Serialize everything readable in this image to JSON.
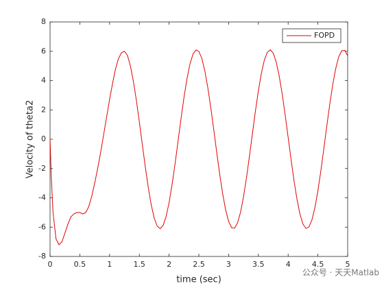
{
  "chart_data": {
    "type": "line",
    "xlabel": "time (sec)",
    "ylabel": "Velocity of theta2",
    "xlim": [
      0,
      5
    ],
    "ylim": [
      -8,
      8
    ],
    "xticks": [
      0,
      0.5,
      1,
      1.5,
      2,
      2.5,
      3,
      3.5,
      4,
      4.5,
      5
    ],
    "yticks": [
      -8,
      -6,
      -4,
      -2,
      0,
      2,
      4,
      6,
      8
    ],
    "grid": false,
    "legend": "northeast",
    "x": [
      0,
      0.02,
      0.05,
      0.1,
      0.15,
      0.2,
      0.25,
      0.3,
      0.35,
      0.4,
      0.45,
      0.5,
      0.55,
      0.6,
      0.65,
      0.7,
      0.75,
      0.8,
      0.85,
      0.9,
      0.95,
      1.0,
      1.05,
      1.1,
      1.15,
      1.2,
      1.25,
      1.3,
      1.35,
      1.4,
      1.45,
      1.5,
      1.55,
      1.6,
      1.65,
      1.7,
      1.75,
      1.8,
      1.85,
      1.9,
      1.95,
      2.0,
      2.05,
      2.1,
      2.15,
      2.2,
      2.25,
      2.3,
      2.35,
      2.4,
      2.45,
      2.5,
      2.55,
      2.6,
      2.65,
      2.7,
      2.75,
      2.8,
      2.85,
      2.9,
      2.95,
      3.0,
      3.05,
      3.1,
      3.15,
      3.2,
      3.25,
      3.3,
      3.35,
      3.4,
      3.45,
      3.5,
      3.55,
      3.6,
      3.65,
      3.7,
      3.75,
      3.8,
      3.85,
      3.9,
      3.95,
      4.0,
      4.05,
      4.1,
      4.15,
      4.2,
      4.25,
      4.3,
      4.35,
      4.4,
      4.45,
      4.5,
      4.55,
      4.6,
      4.65,
      4.7,
      4.75,
      4.8,
      4.85,
      4.9,
      4.95,
      5.0
    ],
    "series": [
      {
        "name": "FOPD",
        "color": "#e00000",
        "values": [
          0,
          -2.5,
          -5,
          -6.8,
          -7.2,
          -7.0,
          -6.4,
          -5.8,
          -5.3,
          -5.1,
          -5.0,
          -5.0,
          -5.1,
          -5.0,
          -4.6,
          -3.9,
          -3.0,
          -2.0,
          -0.9,
          0.3,
          1.5,
          2.7,
          3.8,
          4.8,
          5.5,
          5.9,
          6.0,
          5.72,
          5.0,
          3.95,
          2.66,
          1.18,
          -0.36,
          -1.88,
          -3.29,
          -4.48,
          -5.38,
          -5.93,
          -6.1,
          -5.88,
          -5.27,
          -4.33,
          -3.1,
          -1.68,
          -0.15,
          1.39,
          2.85,
          4.11,
          5.12,
          5.79,
          6.09,
          5.99,
          5.51,
          4.67,
          3.53,
          2.17,
          0.66,
          -0.89,
          -2.38,
          -3.72,
          -4.82,
          -5.61,
          -6.03,
          -6.07,
          -5.71,
          -4.98,
          -3.94,
          -2.64,
          -1.16,
          0.38,
          1.91,
          3.3,
          4.49,
          5.39,
          5.93,
          6.1,
          5.87,
          5.26,
          4.31,
          3.09,
          1.66,
          0.13,
          -1.41,
          -2.86,
          -4.13,
          -5.13,
          -5.8,
          -6.09,
          -5.99,
          -5.5,
          -4.66,
          -3.52,
          -2.15,
          -0.64,
          0.91,
          2.4,
          3.74,
          4.83,
          5.62,
          6.03,
          6.06,
          5.7
        ]
      }
    ],
    "watermark": "公众号 · 天天Matlab"
  }
}
